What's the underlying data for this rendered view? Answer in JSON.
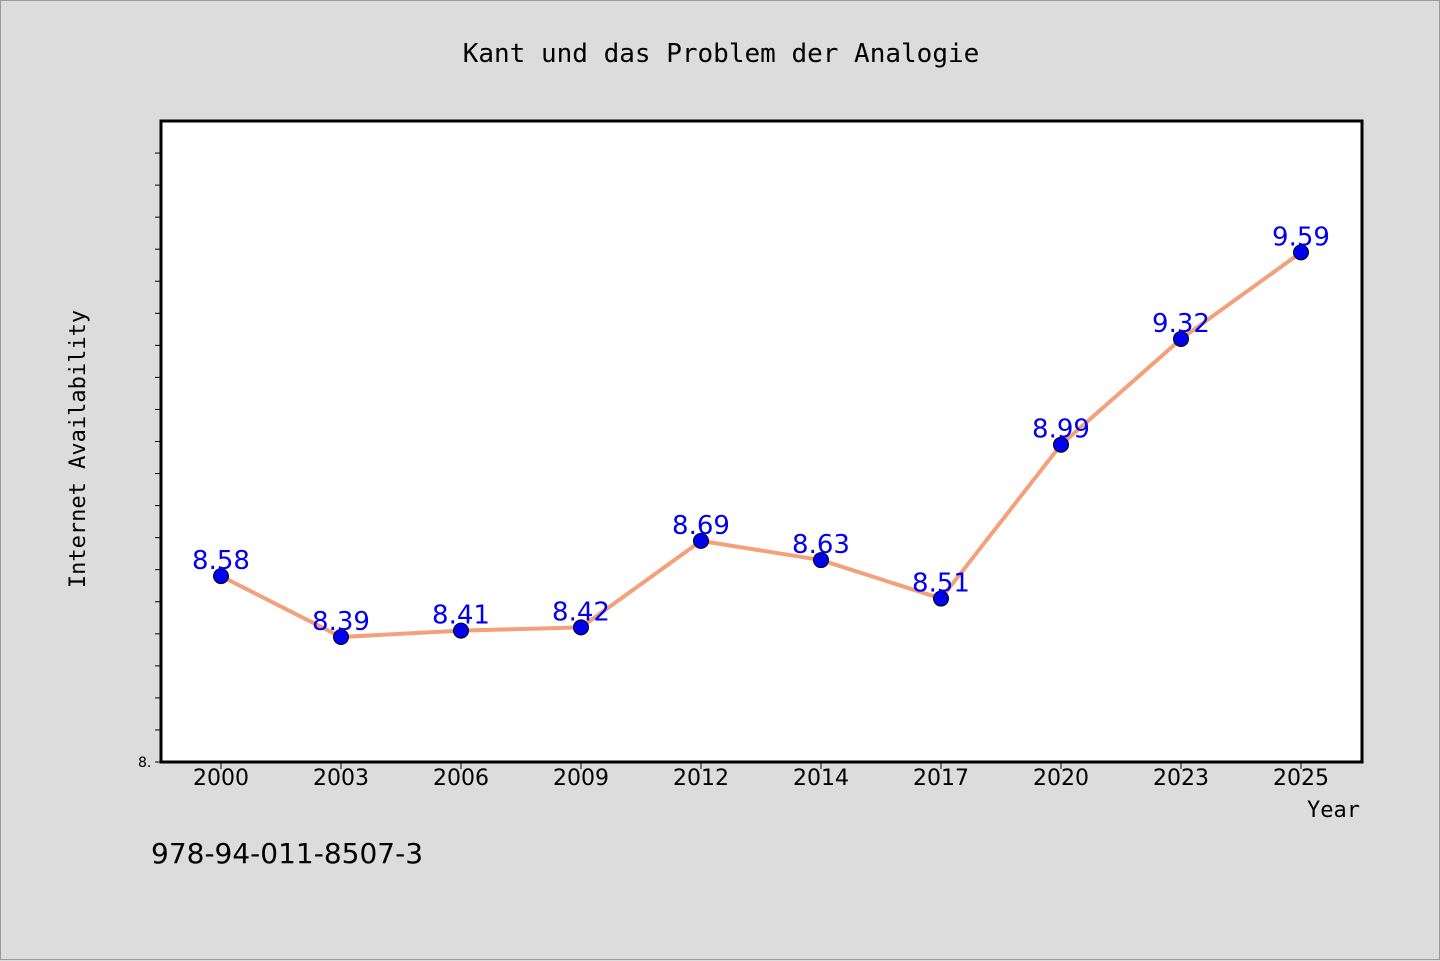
{
  "chart_data": {
    "type": "line",
    "title": "Kant und das Problem der Analogie",
    "xlabel": "Year",
    "ylabel": "Internet Availability",
    "categories": [
      "2000",
      "2003",
      "2006",
      "2009",
      "2012",
      "2014",
      "2017",
      "2020",
      "2023",
      "2025"
    ],
    "series": [
      {
        "values": [
          8.58,
          8.39,
          8.41,
          8.42,
          8.69,
          8.63,
          8.51,
          8.99,
          9.32,
          9.59
        ],
        "data_labels": [
          "8.58",
          "8.39",
          "8.41",
          "8.42",
          "8.69",
          "8.63",
          "8.51",
          "8.99",
          "9.32",
          "9.59"
        ],
        "line_color": "#f4a07a",
        "marker_color": "#0000ee"
      }
    ],
    "ylim": [
      8.0,
      10.0
    ],
    "y_tick_label": "8.",
    "label_color": "#0000ee",
    "grid": false,
    "legend": "none"
  },
  "footer": {
    "isbn": "978-94-011-8507-3"
  }
}
